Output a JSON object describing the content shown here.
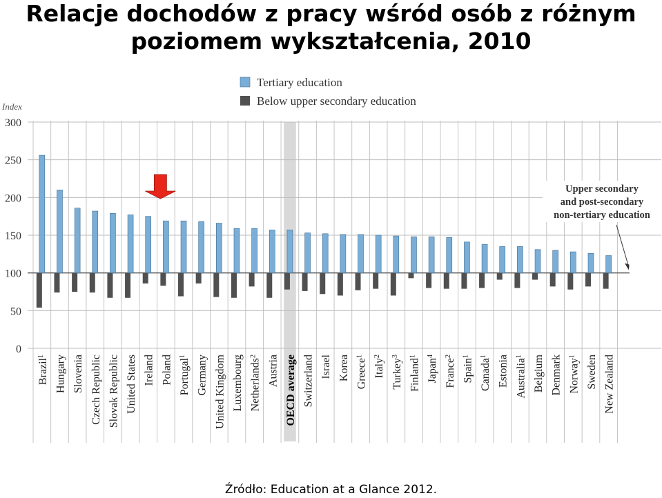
{
  "page": {
    "title_line1": "Relacje dochodów z pracy wśród osób z różnym",
    "title_line2": "poziomem wykształcenia, 2010",
    "source": "Źródło: Education at a Glance 2012."
  },
  "colors": {
    "tertiary": "#7aaed6",
    "below_upper_secondary": "#505050",
    "highlight_arrow": "#e8261a",
    "oecd_band": "#d9d9d9"
  },
  "chart_data": {
    "type": "bar",
    "ylabel": "Index",
    "ylim": [
      0,
      300
    ],
    "yticks": [
      0,
      50,
      100,
      150,
      200,
      250,
      300
    ],
    "baseline": 100,
    "grid": true,
    "legend_position": "top-center",
    "categories": [
      {
        "name": "Brazil",
        "note": "1"
      },
      {
        "name": "Hungary",
        "note": ""
      },
      {
        "name": "Slovenia",
        "note": ""
      },
      {
        "name": "Czech Republic",
        "note": ""
      },
      {
        "name": "Slovak Republic",
        "note": ""
      },
      {
        "name": "United States",
        "note": ""
      },
      {
        "name": "Ireland",
        "note": ""
      },
      {
        "name": "Poland",
        "note": ""
      },
      {
        "name": "Portugal",
        "note": "1"
      },
      {
        "name": "Germany",
        "note": ""
      },
      {
        "name": "United Kingdom",
        "note": ""
      },
      {
        "name": "Luxembourg",
        "note": ""
      },
      {
        "name": "Netherlands",
        "note": "2"
      },
      {
        "name": "Austria",
        "note": ""
      },
      {
        "name": "OECD average",
        "note": ""
      },
      {
        "name": "Switzerland",
        "note": ""
      },
      {
        "name": "Israel",
        "note": ""
      },
      {
        "name": "Korea",
        "note": ""
      },
      {
        "name": "Greece",
        "note": "1"
      },
      {
        "name": "Italy",
        "note": "2"
      },
      {
        "name": "Turkey",
        "note": "3"
      },
      {
        "name": "Finland",
        "note": "1"
      },
      {
        "name": "Japan",
        "note": "4"
      },
      {
        "name": "France",
        "note": "2"
      },
      {
        "name": "Spain",
        "note": "1"
      },
      {
        "name": "Canada",
        "note": "1"
      },
      {
        "name": "Estonia",
        "note": ""
      },
      {
        "name": "Australia",
        "note": "1"
      },
      {
        "name": "Belgium",
        "note": ""
      },
      {
        "name": "Denmark",
        "note": ""
      },
      {
        "name": "Norway",
        "note": "1"
      },
      {
        "name": "Sweden",
        "note": ""
      },
      {
        "name": "New Zealand",
        "note": ""
      }
    ],
    "series": [
      {
        "name": "Tertiary education",
        "values": [
          256,
          210,
          186,
          182,
          179,
          177,
          175,
          169,
          169,
          168,
          166,
          159,
          159,
          157,
          157,
          153,
          152,
          151,
          151,
          150,
          149,
          148,
          148,
          147,
          141,
          138,
          135,
          135,
          131,
          130,
          128,
          126,
          123
        ]
      },
      {
        "name": "Below upper secondary education",
        "values": [
          54,
          74,
          75,
          74,
          67,
          67,
          86,
          83,
          69,
          86,
          68,
          67,
          82,
          67,
          78,
          76,
          72,
          70,
          77,
          79,
          70,
          93,
          80,
          79,
          79,
          80,
          91,
          80,
          91,
          82,
          78,
          82,
          79
        ]
      }
    ],
    "highlight_category": "Poland",
    "shaded_category": "OECD average",
    "annotation": {
      "lines": [
        "Upper secondary",
        "and post-secondary",
        "non-tertiary education"
      ],
      "value": 100
    }
  }
}
